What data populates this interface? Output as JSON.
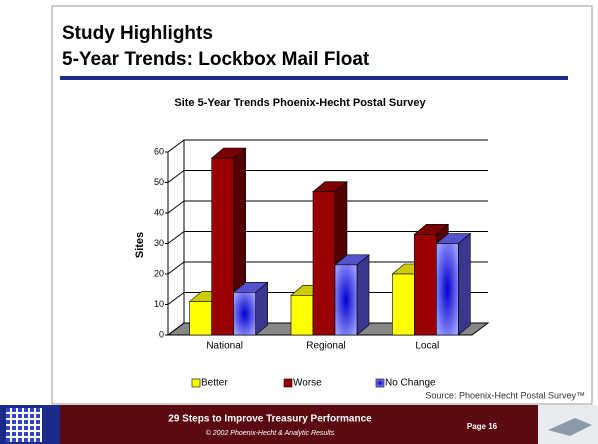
{
  "slide": {
    "title_line1": "Study Highlights",
    "title_line2": "5-Year Trends: Lockbox Mail Float"
  },
  "chart_data": {
    "type": "bar3d",
    "title": "Site 5-Year Trends Phoenix-Hecht Postal Survey",
    "y_label": "Sites",
    "categories": [
      "National",
      "Regional",
      "Local"
    ],
    "series": [
      {
        "name": "Better",
        "color": "#ffff00",
        "values": [
          11,
          13,
          20
        ]
      },
      {
        "name": "Worse",
        "color": "#990000",
        "values": [
          58,
          47,
          33
        ]
      },
      {
        "name": "No Change",
        "color": "#6666ff",
        "values": [
          14,
          23,
          30
        ]
      }
    ],
    "ylim": [
      0,
      60
    ],
    "yticks": [
      0,
      10,
      20,
      30,
      40,
      50,
      60
    ],
    "grid": true,
    "source": "Source: Phoenix-Hecht Postal Survey™"
  },
  "footer": {
    "title": "29 Steps to Improve Treasury Performance",
    "copyright": "© 2002 Phoenix-Hecht & Analytic Results",
    "page": "Page 16"
  }
}
